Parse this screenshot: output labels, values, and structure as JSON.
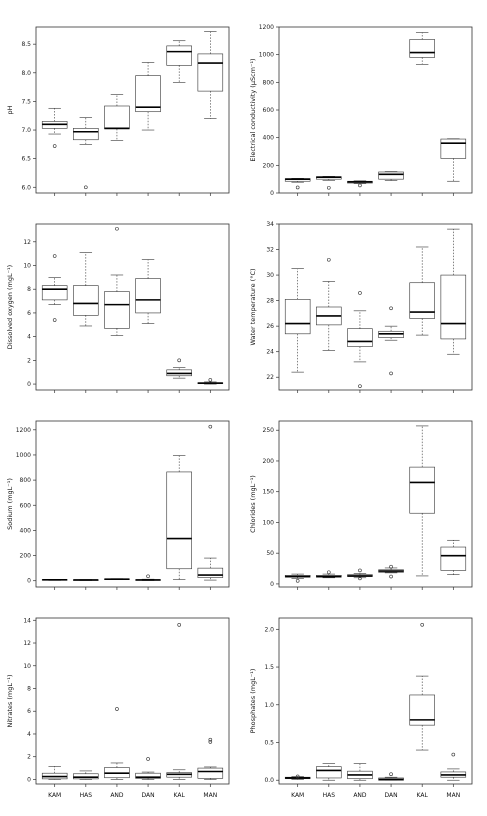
{
  "categories": [
    "KAM",
    "HAS",
    "AND",
    "DAN",
    "KAL",
    "MAN"
  ],
  "chart_data": [
    {
      "type": "box",
      "ylabel": "pH",
      "ylim": [
        5.9,
        8.8
      ],
      "yticks": [
        "6.0",
        "6.5",
        "7.0",
        "7.5",
        "8.0",
        "8.5"
      ],
      "ytick_values": [
        6.0,
        6.5,
        7.0,
        7.5,
        8.0,
        8.5
      ],
      "boxes": [
        {
          "min": 6.93,
          "q1": 7.03,
          "median": 7.1,
          "q3": 7.15,
          "max": 7.38,
          "outliers": [
            6.72
          ]
        },
        {
          "min": 6.75,
          "q1": 6.83,
          "median": 6.97,
          "q3": 7.03,
          "max": 7.22,
          "outliers": [
            6.0
          ]
        },
        {
          "min": 6.82,
          "q1": 7.02,
          "median": 7.03,
          "q3": 7.42,
          "max": 7.62,
          "outliers": []
        },
        {
          "min": 7.0,
          "q1": 7.32,
          "median": 7.4,
          "q3": 7.95,
          "max": 8.18,
          "outliers": []
        },
        {
          "min": 7.83,
          "q1": 8.13,
          "median": 8.37,
          "q3": 8.47,
          "max": 8.56,
          "outliers": []
        },
        {
          "min": 7.2,
          "q1": 7.68,
          "median": 8.17,
          "q3": 8.33,
          "max": 8.72,
          "outliers": []
        }
      ]
    },
    {
      "type": "box",
      "ylabel": "Electrical conductivity (µScm⁻¹)",
      "ylim": [
        0,
        1200
      ],
      "yticks": [
        "0",
        "200",
        "400",
        "600",
        "800",
        "1000",
        "1200"
      ],
      "ytick_values": [
        0,
        200,
        400,
        600,
        800,
        1000,
        1200
      ],
      "boxes": [
        {
          "min": 78,
          "q1": 85,
          "median": 100,
          "q3": 104,
          "max": 106,
          "outliers": [
            40
          ]
        },
        {
          "min": 92,
          "q1": 100,
          "median": 114,
          "q3": 118,
          "max": 120,
          "outliers": [
            38
          ]
        },
        {
          "min": 68,
          "q1": 72,
          "median": 80,
          "q3": 85,
          "max": 88,
          "outliers": [
            55
          ]
        },
        {
          "min": 90,
          "q1": 100,
          "median": 135,
          "q3": 152,
          "max": 155,
          "outliers": []
        },
        {
          "min": 930,
          "q1": 980,
          "median": 1015,
          "q3": 1110,
          "max": 1160,
          "outliers": []
        },
        {
          "min": 85,
          "q1": 250,
          "median": 360,
          "q3": 390,
          "max": 392,
          "outliers": []
        }
      ]
    },
    {
      "type": "box",
      "ylabel": "Dissolved oxygen (mgL⁻¹)",
      "ylim": [
        -0.5,
        13.5
      ],
      "yticks": [
        "0",
        "2",
        "4",
        "6",
        "8",
        "10",
        "12"
      ],
      "ytick_values": [
        0,
        2,
        4,
        6,
        8,
        10,
        12
      ],
      "boxes": [
        {
          "min": 6.7,
          "q1": 7.1,
          "median": 8.0,
          "q3": 8.3,
          "max": 9.0,
          "outliers": [
            10.8,
            5.4
          ]
        },
        {
          "min": 4.9,
          "q1": 5.8,
          "median": 6.8,
          "q3": 8.3,
          "max": 11.1,
          "outliers": []
        },
        {
          "min": 4.1,
          "q1": 4.7,
          "median": 6.7,
          "q3": 7.8,
          "max": 9.2,
          "outliers": [
            13.1
          ]
        },
        {
          "min": 5.1,
          "q1": 6.0,
          "median": 7.1,
          "q3": 8.9,
          "max": 10.5,
          "outliers": []
        },
        {
          "min": 0.5,
          "q1": 0.7,
          "median": 0.9,
          "q3": 1.2,
          "max": 1.4,
          "outliers": [
            2.0
          ]
        },
        {
          "min": 0.0,
          "q1": 0.03,
          "median": 0.08,
          "q3": 0.12,
          "max": 0.18,
          "outliers": [
            0.35
          ]
        }
      ]
    },
    {
      "type": "box",
      "ylabel": "Water temperature (°C)",
      "ylim": [
        21,
        34
      ],
      "yticks": [
        "22",
        "24",
        "26",
        "28",
        "30",
        "32",
        "34"
      ],
      "ytick_values": [
        22,
        24,
        26,
        28,
        30,
        32,
        34
      ],
      "boxes": [
        {
          "min": 22.4,
          "q1": 25.4,
          "median": 26.2,
          "q3": 28.1,
          "max": 30.5,
          "outliers": []
        },
        {
          "min": 24.1,
          "q1": 26.1,
          "median": 26.8,
          "q3": 27.5,
          "max": 29.5,
          "outliers": [
            31.2
          ]
        },
        {
          "min": 23.2,
          "q1": 24.4,
          "median": 24.8,
          "q3": 25.8,
          "max": 27.2,
          "outliers": [
            28.6,
            21.3
          ]
        },
        {
          "min": 24.9,
          "q1": 25.1,
          "median": 25.4,
          "q3": 25.6,
          "max": 26.0,
          "outliers": [
            27.4,
            22.3
          ]
        },
        {
          "min": 25.3,
          "q1": 26.6,
          "median": 27.1,
          "q3": 29.4,
          "max": 32.2,
          "outliers": []
        },
        {
          "min": 23.8,
          "q1": 25.0,
          "median": 26.2,
          "q3": 30.0,
          "max": 33.6,
          "outliers": []
        }
      ]
    },
    {
      "type": "box",
      "ylabel": "Sodium (mgL⁻¹)",
      "ylim": [
        -50,
        1270
      ],
      "yticks": [
        "0",
        "200",
        "400",
        "600",
        "800",
        "1000",
        "1200"
      ],
      "ytick_values": [
        0,
        200,
        400,
        600,
        800,
        1000,
        1200
      ],
      "boxes": [
        {
          "min": 3,
          "q1": 5,
          "median": 7,
          "q3": 9,
          "max": 11,
          "outliers": []
        },
        {
          "min": 2,
          "q1": 4,
          "median": 6,
          "q3": 7,
          "max": 9,
          "outliers": []
        },
        {
          "min": 8,
          "q1": 10,
          "median": 12,
          "q3": 14,
          "max": 16,
          "outliers": []
        },
        {
          "min": 2,
          "q1": 4,
          "median": 6,
          "q3": 8,
          "max": 12,
          "outliers": [
            35
          ]
        },
        {
          "min": 8,
          "q1": 95,
          "median": 335,
          "q3": 865,
          "max": 995,
          "outliers": []
        },
        {
          "min": 5,
          "q1": 25,
          "median": 45,
          "q3": 100,
          "max": 180,
          "outliers": [
            1225
          ]
        }
      ]
    },
    {
      "type": "box",
      "ylabel": "Chlorides (mgL⁻¹)",
      "ylim": [
        -5,
        265
      ],
      "yticks": [
        "0",
        "50",
        "100",
        "150",
        "200",
        "250"
      ],
      "ytick_values": [
        0,
        50,
        100,
        150,
        200,
        250
      ],
      "boxes": [
        {
          "min": 9,
          "q1": 11,
          "median": 12,
          "q3": 14,
          "max": 16,
          "outliers": [
            5
          ]
        },
        {
          "min": 10,
          "q1": 11,
          "median": 12,
          "q3": 14,
          "max": 16,
          "outliers": [
            19
          ]
        },
        {
          "min": 10,
          "q1": 12,
          "median": 13,
          "q3": 15,
          "max": 17,
          "outliers": [
            22,
            9
          ]
        },
        {
          "min": 18,
          "q1": 19,
          "median": 21,
          "q3": 23,
          "max": 26,
          "outliers": [
            28,
            12
          ]
        },
        {
          "min": 13,
          "q1": 115,
          "median": 165,
          "q3": 190,
          "max": 257,
          "outliers": []
        },
        {
          "min": 15,
          "q1": 22,
          "median": 46,
          "q3": 60,
          "max": 71,
          "outliers": []
        }
      ]
    },
    {
      "type": "box",
      "ylabel": "Nitrates (mgL⁻¹)",
      "ylim": [
        -0.4,
        14.2
      ],
      "yticks": [
        "0",
        "2",
        "4",
        "6",
        "8",
        "10",
        "12",
        "14"
      ],
      "ytick_values": [
        0,
        2,
        4,
        6,
        8,
        10,
        12,
        14
      ],
      "boxes": [
        {
          "min": 0.0,
          "q1": 0.05,
          "median": 0.25,
          "q3": 0.55,
          "max": 1.15,
          "outliers": []
        },
        {
          "min": 0.0,
          "q1": 0.05,
          "median": 0.2,
          "q3": 0.5,
          "max": 0.75,
          "outliers": []
        },
        {
          "min": 0.0,
          "q1": 0.15,
          "median": 0.55,
          "q3": 1.05,
          "max": 1.45,
          "outliers": [
            6.2
          ]
        },
        {
          "min": 0.0,
          "q1": 0.1,
          "median": 0.2,
          "q3": 0.55,
          "max": 0.65,
          "outliers": [
            1.8
          ]
        },
        {
          "min": 0.0,
          "q1": 0.2,
          "median": 0.45,
          "q3": 0.6,
          "max": 0.85,
          "outliers": [
            13.6
          ]
        },
        {
          "min": 0.0,
          "q1": 0.1,
          "median": 0.7,
          "q3": 1.0,
          "max": 1.1,
          "outliers": [
            3.5,
            3.3
          ]
        }
      ]
    },
    {
      "type": "box",
      "ylabel": "Phosphates (mgL⁻¹)",
      "ylim": [
        -0.05,
        2.15
      ],
      "yticks": [
        "0.0",
        "0.5",
        "1.0",
        "1.5",
        "2.0"
      ],
      "ytick_values": [
        0.0,
        0.5,
        1.0,
        1.5,
        2.0
      ],
      "boxes": [
        {
          "min": 0.01,
          "q1": 0.02,
          "median": 0.03,
          "q3": 0.04,
          "max": 0.05,
          "outliers": [
            0.05
          ]
        },
        {
          "min": 0.0,
          "q1": 0.03,
          "median": 0.13,
          "q3": 0.18,
          "max": 0.22,
          "outliers": []
        },
        {
          "min": 0.0,
          "q1": 0.02,
          "median": 0.07,
          "q3": 0.12,
          "max": 0.22,
          "outliers": []
        },
        {
          "min": 0.0,
          "q1": 0.0,
          "median": 0.01,
          "q3": 0.03,
          "max": 0.04,
          "outliers": [
            0.08
          ]
        },
        {
          "min": 0.4,
          "q1": 0.73,
          "median": 0.8,
          "q3": 1.13,
          "max": 1.38,
          "outliers": [
            2.06
          ]
        },
        {
          "min": 0.0,
          "q1": 0.04,
          "median": 0.07,
          "q3": 0.11,
          "max": 0.15,
          "outliers": [
            0.34
          ]
        }
      ]
    }
  ]
}
